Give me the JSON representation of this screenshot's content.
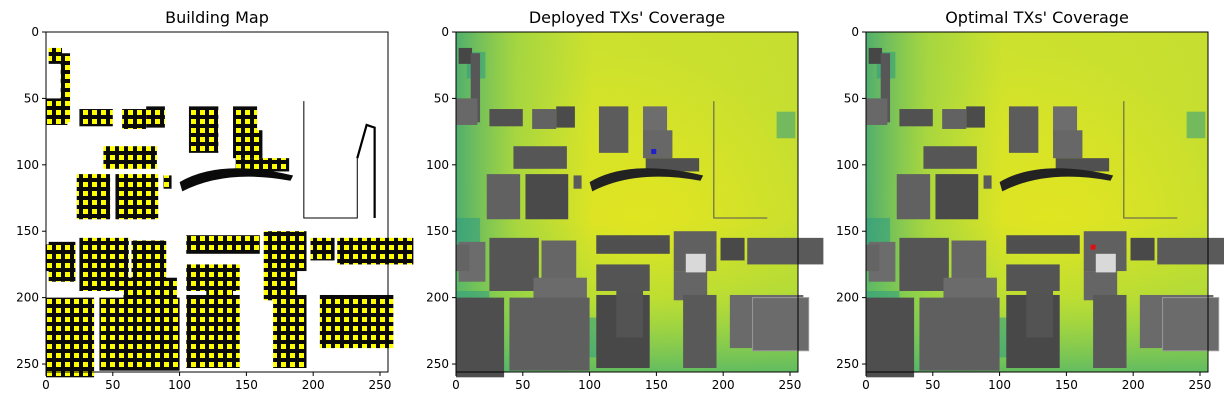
{
  "chart_data": [
    {
      "type": "heatmap",
      "title": "Building Map",
      "xlim": [
        0,
        256
      ],
      "ylim": [
        256,
        0
      ],
      "x_ticks": [
        0,
        50,
        100,
        150,
        200,
        250
      ],
      "y_ticks": [
        0,
        50,
        100,
        150,
        200,
        250
      ],
      "colors": {
        "background": "#ffffff",
        "building": "#000000",
        "marker": "#ffff00"
      }
    },
    {
      "type": "heatmap",
      "title": "Deployed TXs' Coverage",
      "xlim": [
        0,
        256
      ],
      "ylim": [
        256,
        0
      ],
      "x_ticks": [
        0,
        50,
        100,
        150,
        200,
        250
      ],
      "y_ticks": [
        0,
        50,
        100,
        150,
        200,
        250
      ],
      "colormap": "viridis",
      "tx_markers": [
        {
          "x": 148,
          "y": 90,
          "color": "#1f1fcc"
        }
      ]
    },
    {
      "type": "heatmap",
      "title": "Optimal TXs' Coverage",
      "xlim": [
        0,
        256
      ],
      "ylim": [
        256,
        0
      ],
      "x_ticks": [
        0,
        50,
        100,
        150,
        200,
        250
      ],
      "y_ticks": [
        0,
        50,
        100,
        150,
        200,
        250
      ],
      "colormap": "viridis",
      "tx_markers": [
        {
          "x": 170,
          "y": 162,
          "color": "#e01010"
        }
      ]
    }
  ]
}
